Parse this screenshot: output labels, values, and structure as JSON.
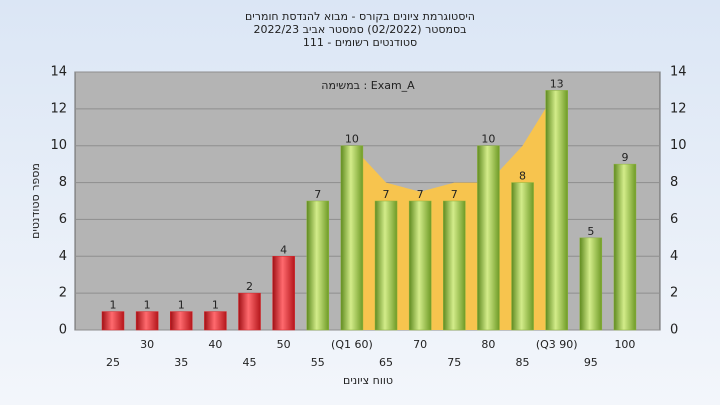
{
  "chart_data": {
    "type": "bar",
    "title_lines": [
      "היסטוגרמת ציונים בקורס - מבוא להנדסת חומרים",
      "בסמסטר  (02/2022)  סמסטר אביב 2022/23",
      "סטודנטים רשומים - 111"
    ],
    "annotation": "במשימה : Exam_A",
    "y_label": "מספר סטודנטים",
    "x_label": "טווח ציונים",
    "categories": [
      "25",
      "30",
      "35",
      "40",
      "45",
      "50",
      "55",
      "(Q1 60)",
      "65",
      "70",
      "75",
      "80",
      "85",
      "(Q3 90)",
      "95",
      "100"
    ],
    "values": [
      1,
      1,
      1,
      1,
      2,
      4,
      7,
      10,
      7,
      7,
      7,
      10,
      8,
      13,
      5,
      9
    ],
    "colors": [
      "#d9262b",
      "#d9262b",
      "#d9262b",
      "#d9262b",
      "#d9262b",
      "#d9262b",
      "#8bb33a",
      "#8bb33a",
      "#8bb33a",
      "#8bb33a",
      "#8bb33a",
      "#8bb33a",
      "#8bb33a",
      "#8bb33a",
      "#8bb33a",
      "#8bb33a"
    ],
    "band_area": {
      "color": "#f7c44e",
      "values": [
        null,
        null,
        null,
        null,
        null,
        null,
        null,
        10,
        8,
        7.5,
        8,
        8,
        10,
        13,
        null,
        null
      ]
    },
    "ylim": [
      0,
      14
    ],
    "yticks": [
      0,
      2,
      4,
      6,
      8,
      10,
      12,
      14
    ],
    "grid": true
  }
}
